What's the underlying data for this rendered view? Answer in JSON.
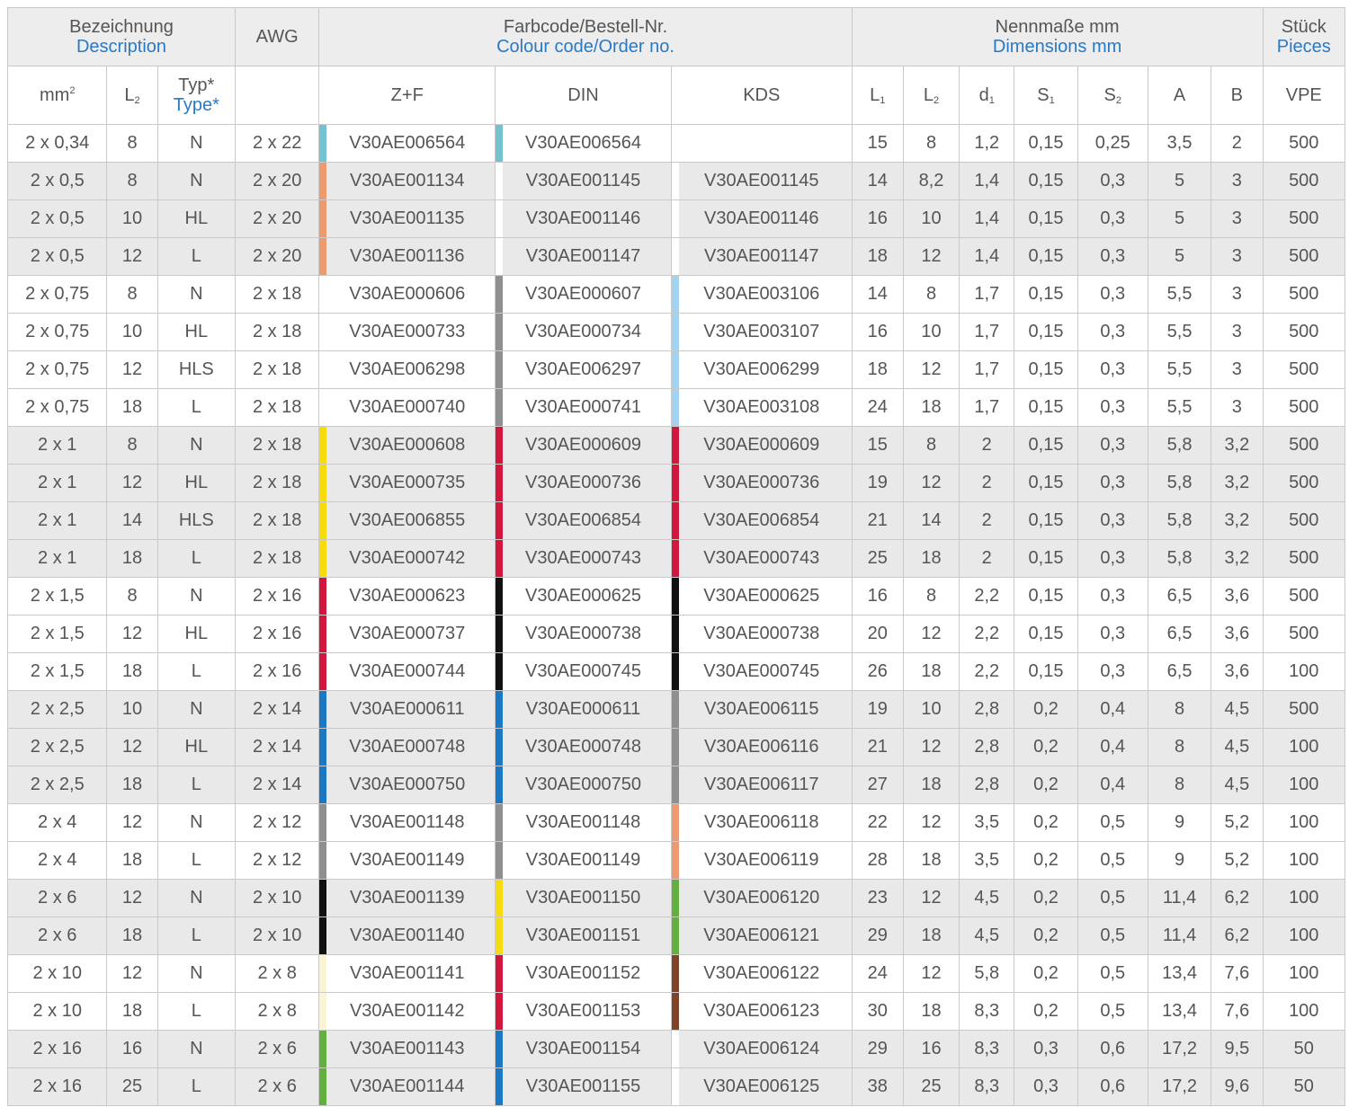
{
  "header": {
    "description_de": "Bezeichnung",
    "description_en": "Description",
    "awg": "AWG",
    "colour_de": "Farbcode/Bestell-Nr.",
    "colour_en": "Colour code/Order no.",
    "dims_de": "Nennmaße mm",
    "dims_en": "Dimensions mm",
    "pieces_de": "Stück",
    "pieces_en": "Pieces",
    "mm2": "mm",
    "mm2_sup": "2",
    "l2": "L",
    "l2_sub": "2",
    "typ_de": "Typ*",
    "typ_en": "Type*",
    "zf": "Z+F",
    "din": "DIN",
    "kds": "KDS",
    "l1": "L",
    "l1_sub": "1",
    "l2b": "L",
    "l2b_sub": "2",
    "d1": "d",
    "d1_sub": "1",
    "s1": "S",
    "s1_sub": "1",
    "s2": "S",
    "s2_sub": "2",
    "a": "A",
    "b": "B",
    "vpe": "VPE"
  },
  "colors": {
    "cyan": "#72c3cf",
    "orange": "#ee9a6f",
    "white": "#ffffff",
    "grey": "#8f8f8f",
    "lightblue": "#a4d3ef",
    "yellow": "#f6dc0d",
    "red": "#d2173f",
    "black": "#111111",
    "blue": "#1d78c4",
    "green": "#62ae3f",
    "ivory": "#faf5d2",
    "brown": "#7f4328",
    "none": "transparent"
  },
  "rows": [
    {
      "mm2": "2 x 0,34",
      "l2": "8",
      "type": "N",
      "awg": "2 x 22",
      "zf": "V30AE006564",
      "zf_c": "cyan",
      "din": "V30AE006564",
      "din_c": "cyan",
      "kds": "",
      "kds_c": "none",
      "L1": "15",
      "L2": "8",
      "d1": "1,2",
      "s1": "0,15",
      "s2": "0,25",
      "A": "3,5",
      "B": "2",
      "vpe": "500"
    },
    {
      "mm2": "2 x 0,5",
      "l2": "8",
      "type": "N",
      "awg": "2 x 20",
      "zf": "V30AE001134",
      "zf_c": "orange",
      "din": "V30AE001145",
      "din_c": "white",
      "kds": "V30AE001145",
      "kds_c": "white",
      "L1": "14",
      "L2": "8,2",
      "d1": "1,4",
      "s1": "0,15",
      "s2": "0,3",
      "A": "5",
      "B": "3",
      "vpe": "500"
    },
    {
      "mm2": "2 x 0,5",
      "l2": "10",
      "type": "HL",
      "awg": "2 x 20",
      "zf": "V30AE001135",
      "zf_c": "orange",
      "din": "V30AE001146",
      "din_c": "white",
      "kds": "V30AE001146",
      "kds_c": "white",
      "L1": "16",
      "L2": "10",
      "d1": "1,4",
      "s1": "0,15",
      "s2": "0,3",
      "A": "5",
      "B": "3",
      "vpe": "500"
    },
    {
      "mm2": "2 x 0,5",
      "l2": "12",
      "type": "L",
      "awg": "2 x 20",
      "zf": "V30AE001136",
      "zf_c": "orange",
      "din": "V30AE001147",
      "din_c": "white",
      "kds": "V30AE001147",
      "kds_c": "white",
      "L1": "18",
      "L2": "12",
      "d1": "1,4",
      "s1": "0,15",
      "s2": "0,3",
      "A": "5",
      "B": "3",
      "vpe": "500"
    },
    {
      "mm2": "2 x 0,75",
      "l2": "8",
      "type": "N",
      "awg": "2 x 18",
      "zf": "V30AE000606",
      "zf_c": "white",
      "din": "V30AE000607",
      "din_c": "grey",
      "kds": "V30AE003106",
      "kds_c": "lightblue",
      "L1": "14",
      "L2": "8",
      "d1": "1,7",
      "s1": "0,15",
      "s2": "0,3",
      "A": "5,5",
      "B": "3",
      "vpe": "500"
    },
    {
      "mm2": "2 x 0,75",
      "l2": "10",
      "type": "HL",
      "awg": "2 x 18",
      "zf": "V30AE000733",
      "zf_c": "white",
      "din": "V30AE000734",
      "din_c": "grey",
      "kds": "V30AE003107",
      "kds_c": "lightblue",
      "L1": "16",
      "L2": "10",
      "d1": "1,7",
      "s1": "0,15",
      "s2": "0,3",
      "A": "5,5",
      "B": "3",
      "vpe": "500"
    },
    {
      "mm2": "2 x 0,75",
      "l2": "12",
      "type": "HLS",
      "awg": "2 x 18",
      "zf": "V30AE006298",
      "zf_c": "white",
      "din": "V30AE006297",
      "din_c": "grey",
      "kds": "V30AE006299",
      "kds_c": "lightblue",
      "L1": "18",
      "L2": "12",
      "d1": "1,7",
      "s1": "0,15",
      "s2": "0,3",
      "A": "5,5",
      "B": "3",
      "vpe": "500"
    },
    {
      "mm2": "2 x 0,75",
      "l2": "18",
      "type": "L",
      "awg": "2 x 18",
      "zf": "V30AE000740",
      "zf_c": "white",
      "din": "V30AE000741",
      "din_c": "grey",
      "kds": "V30AE003108",
      "kds_c": "lightblue",
      "L1": "24",
      "L2": "18",
      "d1": "1,7",
      "s1": "0,15",
      "s2": "0,3",
      "A": "5,5",
      "B": "3",
      "vpe": "500"
    },
    {
      "mm2": "2 x 1",
      "l2": "8",
      "type": "N",
      "awg": "2 x 18",
      "zf": "V30AE000608",
      "zf_c": "yellow",
      "din": "V30AE000609",
      "din_c": "red",
      "kds": "V30AE000609",
      "kds_c": "red",
      "L1": "15",
      "L2": "8",
      "d1": "2",
      "s1": "0,15",
      "s2": "0,3",
      "A": "5,8",
      "B": "3,2",
      "vpe": "500"
    },
    {
      "mm2": "2 x 1",
      "l2": "12",
      "type": "HL",
      "awg": "2 x 18",
      "zf": "V30AE000735",
      "zf_c": "yellow",
      "din": "V30AE000736",
      "din_c": "red",
      "kds": "V30AE000736",
      "kds_c": "red",
      "L1": "19",
      "L2": "12",
      "d1": "2",
      "s1": "0,15",
      "s2": "0,3",
      "A": "5,8",
      "B": "3,2",
      "vpe": "500"
    },
    {
      "mm2": "2 x 1",
      "l2": "14",
      "type": "HLS",
      "awg": "2 x 18",
      "zf": "V30AE006855",
      "zf_c": "yellow",
      "din": "V30AE006854",
      "din_c": "red",
      "kds": "V30AE006854",
      "kds_c": "red",
      "L1": "21",
      "L2": "14",
      "d1": "2",
      "s1": "0,15",
      "s2": "0,3",
      "A": "5,8",
      "B": "3,2",
      "vpe": "500"
    },
    {
      "mm2": "2 x 1",
      "l2": "18",
      "type": "L",
      "awg": "2 x 18",
      "zf": "V30AE000742",
      "zf_c": "yellow",
      "din": "V30AE000743",
      "din_c": "red",
      "kds": "V30AE000743",
      "kds_c": "red",
      "L1": "25",
      "L2": "18",
      "d1": "2",
      "s1": "0,15",
      "s2": "0,3",
      "A": "5,8",
      "B": "3,2",
      "vpe": "500"
    },
    {
      "mm2": "2 x 1,5",
      "l2": "8",
      "type": "N",
      "awg": "2 x 16",
      "zf": "V30AE000623",
      "zf_c": "red",
      "din": "V30AE000625",
      "din_c": "black",
      "kds": "V30AE000625",
      "kds_c": "black",
      "L1": "16",
      "L2": "8",
      "d1": "2,2",
      "s1": "0,15",
      "s2": "0,3",
      "A": "6,5",
      "B": "3,6",
      "vpe": "500"
    },
    {
      "mm2": "2 x 1,5",
      "l2": "12",
      "type": "HL",
      "awg": "2 x 16",
      "zf": "V30AE000737",
      "zf_c": "red",
      "din": "V30AE000738",
      "din_c": "black",
      "kds": "V30AE000738",
      "kds_c": "black",
      "L1": "20",
      "L2": "12",
      "d1": "2,2",
      "s1": "0,15",
      "s2": "0,3",
      "A": "6,5",
      "B": "3,6",
      "vpe": "500"
    },
    {
      "mm2": "2 x 1,5",
      "l2": "18",
      "type": "L",
      "awg": "2 x 16",
      "zf": "V30AE000744",
      "zf_c": "red",
      "din": "V30AE000745",
      "din_c": "black",
      "kds": "V30AE000745",
      "kds_c": "black",
      "L1": "26",
      "L2": "18",
      "d1": "2,2",
      "s1": "0,15",
      "s2": "0,3",
      "A": "6,5",
      "B": "3,6",
      "vpe": "100"
    },
    {
      "mm2": "2 x 2,5",
      "l2": "10",
      "type": "N",
      "awg": "2 x 14",
      "zf": "V30AE000611",
      "zf_c": "blue",
      "din": "V30AE000611",
      "din_c": "blue",
      "kds": "V30AE006115",
      "kds_c": "grey",
      "L1": "19",
      "L2": "10",
      "d1": "2,8",
      "s1": "0,2",
      "s2": "0,4",
      "A": "8",
      "B": "4,5",
      "vpe": "500"
    },
    {
      "mm2": "2 x 2,5",
      "l2": "12",
      "type": "HL",
      "awg": "2 x 14",
      "zf": "V30AE000748",
      "zf_c": "blue",
      "din": "V30AE000748",
      "din_c": "blue",
      "kds": "V30AE006116",
      "kds_c": "grey",
      "L1": "21",
      "L2": "12",
      "d1": "2,8",
      "s1": "0,2",
      "s2": "0,4",
      "A": "8",
      "B": "4,5",
      "vpe": "100"
    },
    {
      "mm2": "2 x 2,5",
      "l2": "18",
      "type": "L",
      "awg": "2 x 14",
      "zf": "V30AE000750",
      "zf_c": "blue",
      "din": "V30AE000750",
      "din_c": "blue",
      "kds": "V30AE006117",
      "kds_c": "grey",
      "L1": "27",
      "L2": "18",
      "d1": "2,8",
      "s1": "0,2",
      "s2": "0,4",
      "A": "8",
      "B": "4,5",
      "vpe": "100"
    },
    {
      "mm2": "2 x 4",
      "l2": "12",
      "type": "N",
      "awg": "2 x 12",
      "zf": "V30AE001148",
      "zf_c": "grey",
      "din": "V30AE001148",
      "din_c": "grey",
      "kds": "V30AE006118",
      "kds_c": "orange",
      "L1": "22",
      "L2": "12",
      "d1": "3,5",
      "s1": "0,2",
      "s2": "0,5",
      "A": "9",
      "B": "5,2",
      "vpe": "100"
    },
    {
      "mm2": "2 x 4",
      "l2": "18",
      "type": "L",
      "awg": "2 x 12",
      "zf": "V30AE001149",
      "zf_c": "grey",
      "din": "V30AE001149",
      "din_c": "grey",
      "kds": "V30AE006119",
      "kds_c": "orange",
      "L1": "28",
      "L2": "18",
      "d1": "3,5",
      "s1": "0,2",
      "s2": "0,5",
      "A": "9",
      "B": "5,2",
      "vpe": "100"
    },
    {
      "mm2": "2 x 6",
      "l2": "12",
      "type": "N",
      "awg": "2 x 10",
      "zf": "V30AE001139",
      "zf_c": "black",
      "din": "V30AE001150",
      "din_c": "yellow",
      "kds": "V30AE006120",
      "kds_c": "green",
      "L1": "23",
      "L2": "12",
      "d1": "4,5",
      "s1": "0,2",
      "s2": "0,5",
      "A": "11,4",
      "B": "6,2",
      "vpe": "100"
    },
    {
      "mm2": "2 x 6",
      "l2": "18",
      "type": "L",
      "awg": "2 x 10",
      "zf": "V30AE001140",
      "zf_c": "black",
      "din": "V30AE001151",
      "din_c": "yellow",
      "kds": "V30AE006121",
      "kds_c": "green",
      "L1": "29",
      "L2": "18",
      "d1": "4,5",
      "s1": "0,2",
      "s2": "0,5",
      "A": "11,4",
      "B": "6,2",
      "vpe": "100"
    },
    {
      "mm2": "2 x 10",
      "l2": "12",
      "type": "N",
      "awg": "2 x 8",
      "zf": "V30AE001141",
      "zf_c": "ivory",
      "din": "V30AE001152",
      "din_c": "red",
      "kds": "V30AE006122",
      "kds_c": "brown",
      "L1": "24",
      "L2": "12",
      "d1": "5,8",
      "s1": "0,2",
      "s2": "0,5",
      "A": "13,4",
      "B": "7,6",
      "vpe": "100"
    },
    {
      "mm2": "2 x 10",
      "l2": "18",
      "type": "L",
      "awg": "2 x 8",
      "zf": "V30AE001142",
      "zf_c": "ivory",
      "din": "V30AE001153",
      "din_c": "red",
      "kds": "V30AE006123",
      "kds_c": "brown",
      "L1": "30",
      "L2": "18",
      "d1": "8,3",
      "s1": "0,2",
      "s2": "0,5",
      "A": "13,4",
      "B": "7,6",
      "vpe": "100"
    },
    {
      "mm2": "2 x 16",
      "l2": "16",
      "type": "N",
      "awg": "2 x 6",
      "zf": "V30AE001143",
      "zf_c": "green",
      "din": "V30AE001154",
      "din_c": "blue",
      "kds": "V30AE006124",
      "kds_c": "white",
      "L1": "29",
      "L2": "16",
      "d1": "8,3",
      "s1": "0,3",
      "s2": "0,6",
      "A": "17,2",
      "B": "9,5",
      "vpe": "50"
    },
    {
      "mm2": "2 x 16",
      "l2": "25",
      "type": "L",
      "awg": "2 x 6",
      "zf": "V30AE001144",
      "zf_c": "green",
      "din": "V30AE001155",
      "din_c": "blue",
      "kds": "V30AE006125",
      "kds_c": "white",
      "L1": "38",
      "L2": "25",
      "d1": "8,3",
      "s1": "0,3",
      "s2": "0,6",
      "A": "17,2",
      "B": "9,6",
      "vpe": "50"
    }
  ]
}
